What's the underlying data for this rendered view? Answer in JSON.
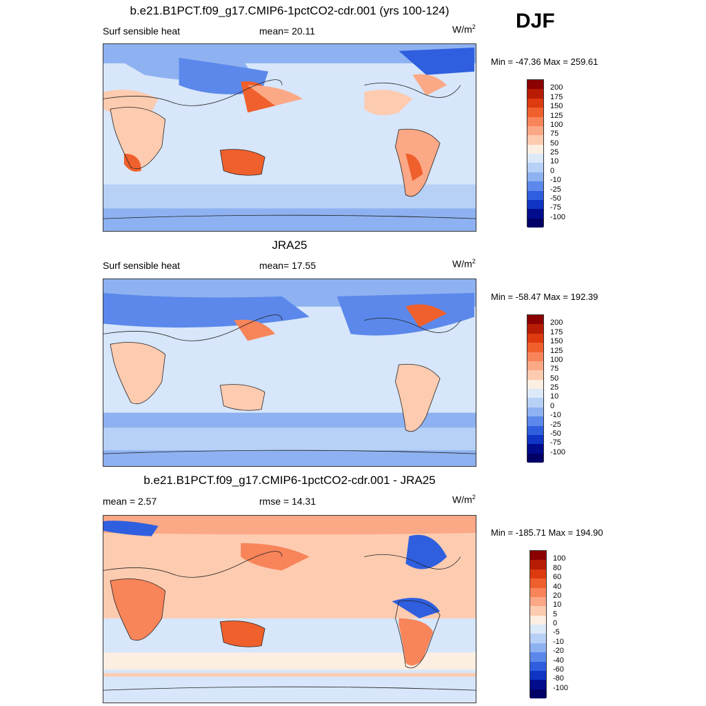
{
  "season": "DJF",
  "units": "W/m",
  "units_sup": "2",
  "panels": [
    {
      "title": "b.e21.B1PCT.f09_g17.CMIP6-1pctCO2-cdr.001 (yrs 100-124)",
      "left": "Surf sensible heat",
      "mid": "mean=  20.11",
      "minmax": "Min = -47.36 Max = 259.61"
    },
    {
      "title": "JRA25",
      "left": "Surf sensible heat",
      "mid": "mean=  17.55",
      "minmax": "Min = -58.47 Max = 192.39"
    },
    {
      "title": "b.e21.B1PCT.f09_g17.CMIP6-1pctCO2-cdr.001 - JRA25",
      "left": "mean =   2.57",
      "mid": "rmse =  14.31",
      "minmax": "Min = -185.71 Max = 194.90"
    }
  ],
  "colorbar_abs": {
    "labels": [
      "200",
      "175",
      "150",
      "125",
      "100",
      "75",
      "50",
      "25",
      "10",
      "0",
      "-10",
      "-25",
      "-50",
      "-75",
      "-100"
    ],
    "colors": [
      "#8b0000",
      "#b81c05",
      "#dd3a10",
      "#f0602c",
      "#f8845a",
      "#fba886",
      "#fdcbb0",
      "#fdeee2",
      "#dce9f9",
      "#b7d0f6",
      "#8eb2f1",
      "#5b88ea",
      "#2f5fdf",
      "#1034c4",
      "#000c8c",
      "#000066"
    ]
  },
  "colorbar_diff": {
    "labels": [
      "100",
      "80",
      "60",
      "40",
      "20",
      "10",
      "5",
      "0",
      "-5",
      "-10",
      "-20",
      "-40",
      "-60",
      "-80",
      "-100"
    ],
    "colors": [
      "#8b0000",
      "#b81c05",
      "#dd3a10",
      "#f0602c",
      "#f8845a",
      "#fba886",
      "#fdcbb0",
      "#fdeee2",
      "#dce9f9",
      "#b7d0f6",
      "#8eb2f1",
      "#5b88ea",
      "#2f5fdf",
      "#1034c4",
      "#000c8c",
      "#000066"
    ]
  }
}
